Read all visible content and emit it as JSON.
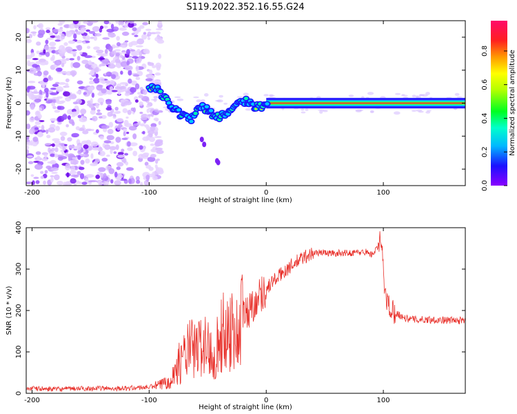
{
  "title": "S119.2022.352.16.55.G24",
  "chart_data": [
    {
      "type": "heatmap",
      "xlabel": "Height of straight line (km)",
      "ylabel": "Frequency (Hz)",
      "xlim": [
        -205,
        170
      ],
      "ylim": [
        -25,
        25
      ],
      "x_ticks": [
        -200,
        -100,
        0,
        100
      ],
      "y_ticks": [
        -20,
        -10,
        0,
        10,
        20
      ],
      "colorbar": {
        "label": "Normalized spectral amplitude",
        "range": [
          0.0,
          0.98
        ],
        "ticks": [
          0.0,
          0.2,
          0.4,
          0.6,
          0.8
        ]
      },
      "ridge": {
        "description_free": true,
        "x": [
          -100,
          -95,
          -90,
          -85,
          -80,
          -75,
          -70,
          -65,
          -60,
          -55,
          -50,
          -45,
          -40,
          -35,
          -30,
          -25,
          -20,
          -15,
          -10,
          -5,
          0,
          10,
          50,
          100,
          170
        ],
        "y": [
          5,
          4.5,
          3,
          1,
          -1,
          -3,
          -4,
          -5,
          -3,
          -1,
          -2,
          -4,
          -4,
          -3,
          -2,
          0,
          1,
          0,
          -1,
          -1,
          0,
          0,
          0,
          0,
          0
        ]
      }
    },
    {
      "type": "line",
      "xlabel": "Height of straight line (km)",
      "ylabel": "SNR (10 * v/v)",
      "xlim": [
        -205,
        170
      ],
      "ylim": [
        0,
        400
      ],
      "x_ticks": [
        -200,
        -100,
        0,
        100
      ],
      "y_ticks": [
        0,
        100,
        200,
        300,
        400
      ],
      "series": [
        {
          "color": "#e8302a",
          "x": [
            -205,
            -180,
            -150,
            -120,
            -100,
            -90,
            -80,
            -75,
            -70,
            -65,
            -60,
            -55,
            -50,
            -45,
            -40,
            -35,
            -30,
            -25,
            -20,
            -15,
            -10,
            -5,
            0,
            5,
            10,
            15,
            20,
            25,
            30,
            35,
            40,
            45,
            50,
            55,
            60,
            65,
            70,
            75,
            80,
            85,
            90,
            95,
            98,
            100,
            102,
            105,
            110,
            120,
            130,
            140,
            150,
            160,
            170
          ],
          "y": [
            12,
            10,
            12,
            12,
            15,
            20,
            40,
            70,
            90,
            110,
            100,
            120,
            110,
            90,
            130,
            150,
            160,
            140,
            190,
            200,
            220,
            240,
            250,
            270,
            280,
            295,
            305,
            315,
            325,
            333,
            338,
            340,
            340,
            338,
            338,
            340,
            338,
            340,
            340,
            342,
            335,
            350,
            370,
            300,
            230,
            210,
            195,
            180,
            178,
            178,
            177,
            176,
            175
          ]
        }
      ]
    }
  ]
}
